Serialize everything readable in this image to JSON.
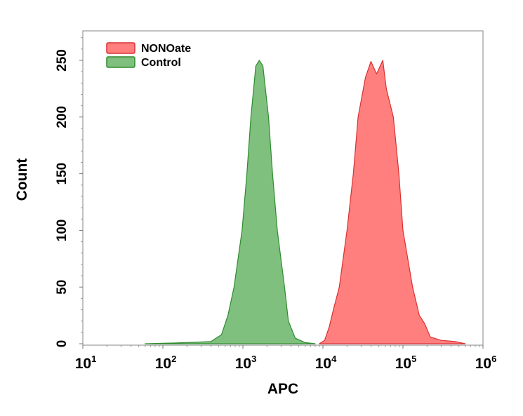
{
  "chart_data": {
    "type": "area",
    "title": "",
    "xlabel": "APC",
    "ylabel": "Count",
    "x_scale": "log",
    "xlim": [
      10,
      1000000
    ],
    "ylim": [
      0,
      276
    ],
    "x_tick_labels": [
      {
        "base": "10",
        "exp": "1",
        "value": 10
      },
      {
        "base": "10",
        "exp": "2",
        "value": 100
      },
      {
        "base": "10",
        "exp": "3",
        "value": 1000
      },
      {
        "base": "10",
        "exp": "4",
        "value": 10000
      },
      {
        "base": "10",
        "exp": "5",
        "value": 100000
      },
      {
        "base": "10",
        "exp": "6",
        "value": 1000000
      }
    ],
    "y_ticks": [
      0,
      50,
      100,
      150,
      200,
      250
    ],
    "grid": false,
    "legend_position": "top-left",
    "series": [
      {
        "name": "NONOate",
        "fill": "#ff7f7f",
        "stroke": "#d93030",
        "points": [
          [
            9000,
            0
          ],
          [
            10500,
            3
          ],
          [
            12000,
            15
          ],
          [
            13500,
            30
          ],
          [
            16000,
            50
          ],
          [
            20000,
            100
          ],
          [
            24000,
            150
          ],
          [
            27500,
            200
          ],
          [
            34000,
            235
          ],
          [
            39800,
            249
          ],
          [
            46800,
            238
          ],
          [
            56000,
            250
          ],
          [
            62000,
            225
          ],
          [
            75900,
            200
          ],
          [
            89000,
            150
          ],
          [
            100000,
            100
          ],
          [
            132000,
            50
          ],
          [
            160000,
            25
          ],
          [
            186000,
            18
          ],
          [
            220000,
            6
          ],
          [
            300000,
            3
          ],
          [
            450000,
            2
          ],
          [
            600000,
            0
          ]
        ]
      },
      {
        "name": "Control",
        "fill": "#7fc07f",
        "stroke": "#2e8b2e",
        "points": [
          [
            60,
            0
          ],
          [
            200,
            1
          ],
          [
            400,
            2
          ],
          [
            540,
            8
          ],
          [
            650,
            25
          ],
          [
            776,
            50
          ],
          [
            977,
            100
          ],
          [
            1122,
            150
          ],
          [
            1259,
            200
          ],
          [
            1450,
            245
          ],
          [
            1600,
            250
          ],
          [
            1780,
            245
          ],
          [
            2089,
            200
          ],
          [
            2344,
            150
          ],
          [
            2692,
            100
          ],
          [
            3311,
            50
          ],
          [
            3700,
            20
          ],
          [
            4500,
            5
          ],
          [
            6000,
            1
          ],
          [
            8000,
            0
          ]
        ]
      }
    ]
  }
}
